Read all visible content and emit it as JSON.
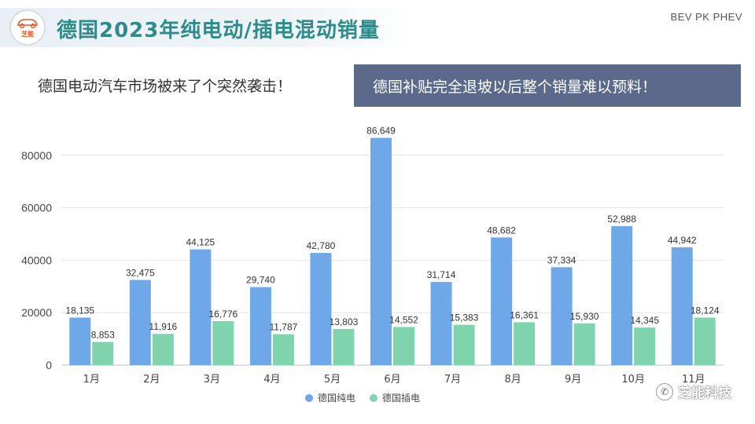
{
  "header": {
    "logo_text": "芝能",
    "title": "德国2023年纯电动/插电混动销量",
    "tag": "BEV PK PHEV"
  },
  "subtitles": {
    "left": "德国电动汽车市场被来了个突然袭击！",
    "right": "德国补贴完全退坡以后整个销量难以预料！"
  },
  "watermark": {
    "text": "芝能科技",
    "icon": "wechat-icon"
  },
  "colors": {
    "bev": "#6fa8e8",
    "phev": "#7fd4ae",
    "subtitle_box": "#5b6a8a",
    "title": "#2e8b8b"
  },
  "chart_data": {
    "type": "bar",
    "categories": [
      "1月",
      "2月",
      "3月",
      "4月",
      "5月",
      "6月",
      "7月",
      "8月",
      "9月",
      "10月",
      "11月"
    ],
    "series": [
      {
        "name": "德国纯电",
        "values": [
          18135,
          32475,
          44125,
          29740,
          42780,
          86649,
          31714,
          48682,
          37334,
          52988,
          44942
        ],
        "labels": [
          "18,135",
          "32,475",
          "44,125",
          "29,740",
          "42,780",
          "86,649",
          "31,714",
          "48,682",
          "37,334",
          "52,988",
          "44,942"
        ]
      },
      {
        "name": "德国插电",
        "values": [
          8853,
          11916,
          16776,
          11787,
          13803,
          14552,
          15383,
          16361,
          15930,
          14345,
          18124
        ],
        "labels": [
          "8,853",
          "11,916",
          "16,776",
          "11,787",
          "13,803",
          "14,552",
          "15,383",
          "16,361",
          "15,930",
          "14,345",
          "18,124"
        ]
      }
    ],
    "yticks": [
      "0",
      "20000",
      "40000",
      "60000",
      "80000"
    ],
    "ylim": [
      0,
      90000
    ],
    "grid": true,
    "legend": "bottom-center"
  }
}
